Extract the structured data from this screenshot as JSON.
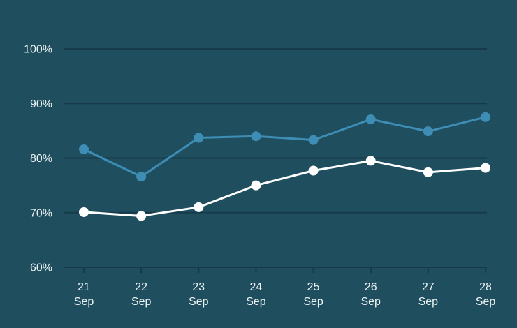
{
  "colors": {
    "background": "#1f4e5f",
    "grid": "#163a49",
    "axis_label": "#edf2f3"
  },
  "chart_data": {
    "type": "line",
    "x_tick_labels": [
      [
        "21",
        "Sep"
      ],
      [
        "22",
        "Sep"
      ],
      [
        "23",
        "Sep"
      ],
      [
        "24",
        "Sep"
      ],
      [
        "25",
        "Sep"
      ],
      [
        "26",
        "Sep"
      ],
      [
        "27",
        "Sep"
      ],
      [
        "28",
        "Sep"
      ]
    ],
    "y_ticks": [
      {
        "value": 100,
        "label": "100%"
      },
      {
        "value": 90,
        "label": "90%"
      },
      {
        "value": 80,
        "label": "80%"
      },
      {
        "value": 70,
        "label": "70%"
      },
      {
        "value": 60,
        "label": "60%"
      }
    ],
    "ylim": [
      60,
      100
    ],
    "grid": "horizontal-only",
    "legend": "none",
    "series": [
      {
        "name": "blue-series",
        "color": "#3e8db5",
        "marker": "circle",
        "values": [
          81.6,
          76.6,
          83.7,
          84.0,
          83.3,
          87.1,
          84.9,
          87.5
        ]
      },
      {
        "name": "white-series",
        "color": "#ffffff",
        "marker": "circle",
        "values": [
          70.1,
          69.4,
          71.0,
          75.0,
          77.7,
          79.5,
          77.4,
          78.2
        ]
      }
    ]
  }
}
